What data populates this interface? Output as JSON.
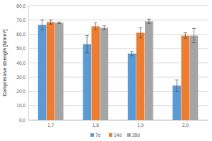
{
  "chart_data": {
    "type": "bar",
    "y_label": "Compressive strength [N/mm²]",
    "categories": [
      "1,7",
      "1,8",
      "1,9",
      "2,0"
    ],
    "series": [
      {
        "name": "7d",
        "color": "#5b9bd5",
        "values": [
          66.5,
          53,
          46.5,
          24
        ],
        "errors": [
          3.5,
          6,
          1.5,
          4
        ]
      },
      {
        "name": "14d",
        "color": "#ed7d31",
        "values": [
          68.5,
          65.5,
          61,
          59
        ],
        "errors": [
          1.5,
          2.5,
          3.5,
          2
        ]
      },
      {
        "name": "28d",
        "color": "#a5a5a5",
        "values": [
          68,
          64.5,
          69,
          59
        ],
        "errors": [
          0.5,
          1.5,
          1.5,
          5
        ]
      }
    ],
    "ylim": [
      0,
      80
    ],
    "yticks": [
      {
        "value": 0,
        "label": "0,0"
      },
      {
        "value": 10,
        "label": "10,0"
      },
      {
        "value": 20,
        "label": "20,0"
      },
      {
        "value": 30,
        "label": "30,0"
      },
      {
        "value": 40,
        "label": "40,0"
      },
      {
        "value": 50,
        "label": "50,0"
      },
      {
        "value": 60,
        "label": "60,0"
      },
      {
        "value": 70,
        "label": "70,0"
      },
      {
        "value": 80,
        "label": "80,0"
      }
    ],
    "grid": true,
    "legend": "bottom"
  }
}
